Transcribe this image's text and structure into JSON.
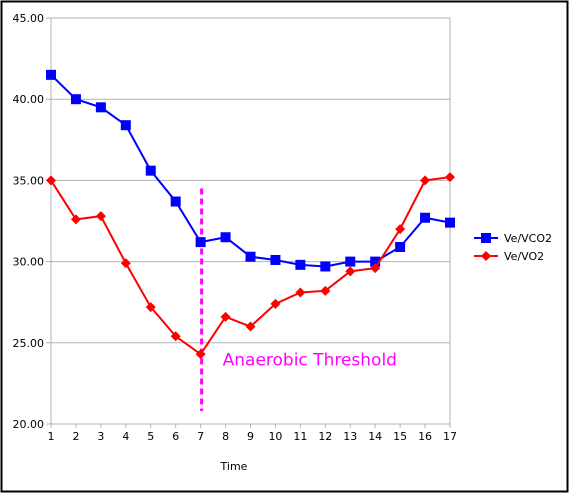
{
  "chart_data": {
    "type": "line",
    "title": "",
    "xlabel": "Time",
    "ylabel": "",
    "x": [
      1,
      2,
      3,
      4,
      5,
      6,
      7,
      8,
      9,
      10,
      11,
      12,
      13,
      14,
      15,
      16,
      17
    ],
    "xlim": [
      1,
      17
    ],
    "ylim": [
      20,
      45
    ],
    "y_ticks": [
      "20.00",
      "25.00",
      "30.00",
      "35.00",
      "40.00",
      "45.00"
    ],
    "x_ticks": [
      "1",
      "2",
      "3",
      "4",
      "5",
      "6",
      "7",
      "8",
      "9",
      "10",
      "11",
      "12",
      "13",
      "14",
      "15",
      "16",
      "17"
    ],
    "grid": "horizontal",
    "legend_position": "right",
    "series": [
      {
        "name": "Ve/VCO2",
        "color": "#0000ff",
        "marker": "square",
        "values": [
          41.5,
          40.0,
          39.5,
          38.4,
          35.6,
          33.7,
          31.2,
          31.5,
          30.3,
          30.1,
          29.8,
          29.7,
          30.0,
          30.0,
          30.9,
          32.7,
          32.4
        ]
      },
      {
        "name": "Ve/VO2",
        "color": "#ff0000",
        "marker": "diamond",
        "values": [
          35.0,
          32.6,
          32.8,
          29.9,
          27.2,
          25.4,
          24.3,
          26.6,
          26.0,
          27.4,
          28.1,
          28.2,
          29.4,
          29.6,
          32.0,
          35.0,
          35.2
        ]
      }
    ],
    "annotations": [
      {
        "text": "Anaerobic Threshold",
        "color": "#ff00ff",
        "threshold_x": 7,
        "threshold_y_range": [
          20.8,
          34.5
        ],
        "line_style": "dashed"
      }
    ]
  }
}
